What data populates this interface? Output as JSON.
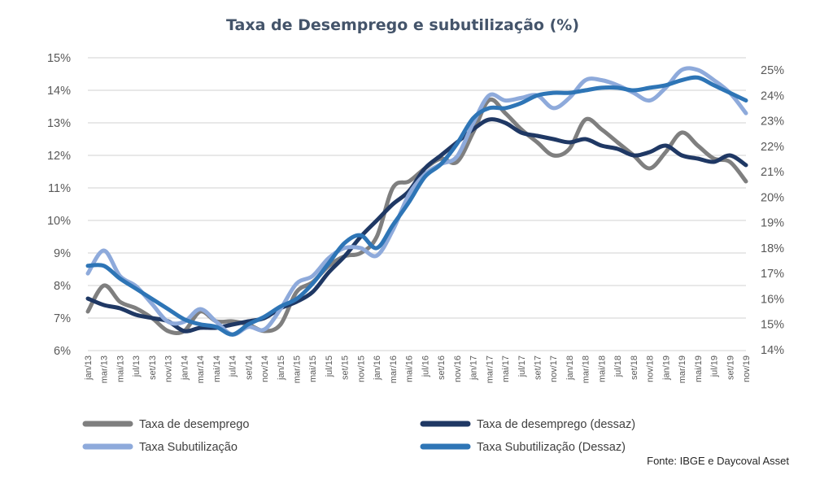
{
  "chart_data": {
    "type": "line",
    "title": "Taxa de Desemprego e subutilização  (%)",
    "source": "Fonte: IBGE e Daycoval Asset",
    "x": [
      "jan/13",
      "mar/13",
      "mai/13",
      "jul/13",
      "set/13",
      "nov/13",
      "jan/14",
      "mar/14",
      "mai/14",
      "jul/14",
      "set/14",
      "nov/14",
      "jan/15",
      "mar/15",
      "mai/15",
      "jul/15",
      "set/15",
      "nov/15",
      "jan/16",
      "mar/16",
      "mai/16",
      "jul/16",
      "set/16",
      "nov/16",
      "jan/17",
      "mar/17",
      "mai/17",
      "jul/17",
      "set/17",
      "nov/17",
      "jan/18",
      "mar/18",
      "mai/18",
      "jul/18",
      "set/18",
      "nov/18",
      "jan/19",
      "mar/19",
      "mai/19",
      "jul/19",
      "set/19",
      "nov/19"
    ],
    "y_left": {
      "ylim": [
        6,
        15
      ],
      "ticks": [
        "6%",
        "7%",
        "8%",
        "9%",
        "10%",
        "11%",
        "12%",
        "13%",
        "14%",
        "15%"
      ]
    },
    "y_right": {
      "ylim": [
        14,
        25
      ],
      "ticks": [
        "14%",
        "15%",
        "16%",
        "17%",
        "18%",
        "19%",
        "20%",
        "21%",
        "22%",
        "23%",
        "24%",
        "25%"
      ]
    },
    "grid": true,
    "legend_position": "bottom",
    "series": [
      {
        "name": "Taxa de desemprego",
        "axis": "left",
        "color": "#7f7f7f",
        "values": [
          7.2,
          8.0,
          7.5,
          7.3,
          7.0,
          6.6,
          6.6,
          7.2,
          6.9,
          6.9,
          6.8,
          6.6,
          6.8,
          7.8,
          8.1,
          8.6,
          8.9,
          9.0,
          9.5,
          11.0,
          11.2,
          11.6,
          11.9,
          11.8,
          12.7,
          13.7,
          13.3,
          12.8,
          12.4,
          12.0,
          12.2,
          13.1,
          12.8,
          12.4,
          12.0,
          11.6,
          12.1,
          12.7,
          12.3,
          11.9,
          11.8,
          11.2
        ]
      },
      {
        "name": "Taxa de desemprego (dessaz)",
        "axis": "left",
        "color": "#1f3864",
        "values": [
          7.6,
          7.4,
          7.3,
          7.1,
          7.0,
          6.9,
          6.6,
          6.7,
          6.7,
          6.8,
          6.9,
          7.0,
          7.3,
          7.5,
          7.8,
          8.4,
          8.9,
          9.5,
          10.0,
          10.5,
          10.9,
          11.6,
          12.0,
          12.4,
          12.8,
          13.1,
          13.0,
          12.7,
          12.6,
          12.5,
          12.4,
          12.5,
          12.3,
          12.2,
          12.0,
          12.1,
          12.3,
          12.0,
          11.9,
          11.8,
          12.0,
          11.7
        ]
      },
      {
        "name": "Taxa Subutilização",
        "axis": "right",
        "color": "#8eaadb",
        "values": [
          17.0,
          17.9,
          16.9,
          16.5,
          15.8,
          15.1,
          15.1,
          15.6,
          15.1,
          14.6,
          14.9,
          14.8,
          15.6,
          16.6,
          16.9,
          17.6,
          18.0,
          18.0,
          17.7,
          18.7,
          20.1,
          20.9,
          21.3,
          21.6,
          22.9,
          24.0,
          23.8,
          23.9,
          24.0,
          23.5,
          23.9,
          24.6,
          24.6,
          24.4,
          24.1,
          23.8,
          24.3,
          25.0,
          25.0,
          24.6,
          24.1,
          23.3
        ]
      },
      {
        "name": "Taxa Subutilização (Dessaz)",
        "axis": "right",
        "color": "#2e75b6",
        "values": [
          17.3,
          17.3,
          16.8,
          16.4,
          16.0,
          15.6,
          15.2,
          15.0,
          14.9,
          14.6,
          15.0,
          15.3,
          15.7,
          16.0,
          16.6,
          17.4,
          18.2,
          18.5,
          18.0,
          18.9,
          19.8,
          20.8,
          21.3,
          22.1,
          23.1,
          23.5,
          23.5,
          23.7,
          24.0,
          24.1,
          24.1,
          24.2,
          24.3,
          24.3,
          24.2,
          24.3,
          24.4,
          24.6,
          24.7,
          24.4,
          24.1,
          23.8
        ]
      }
    ]
  }
}
